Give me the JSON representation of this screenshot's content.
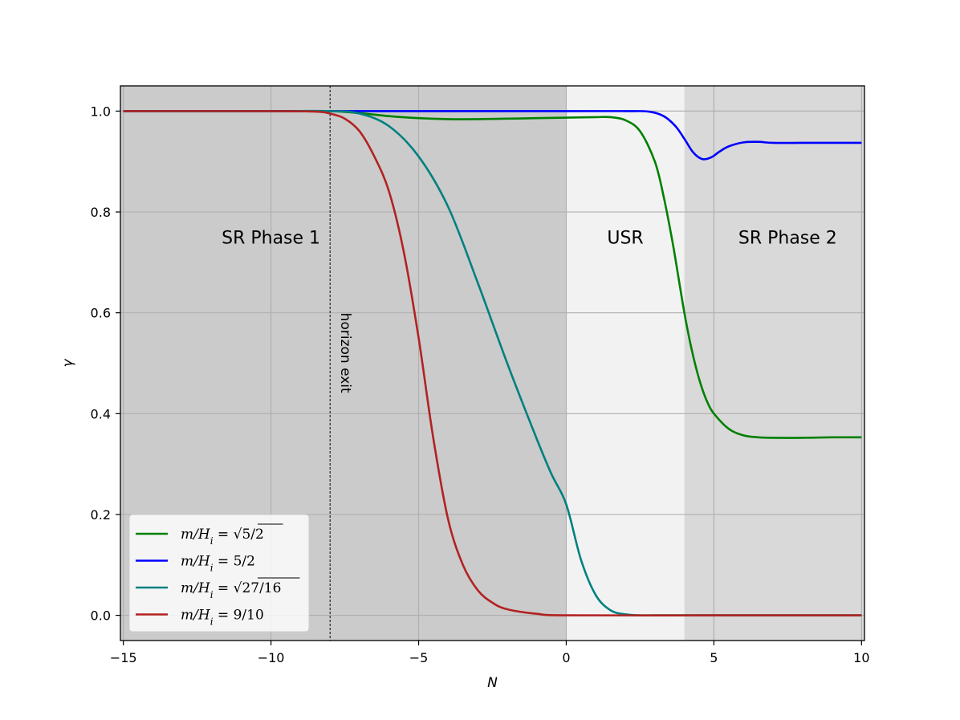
{
  "chart_data": {
    "type": "line",
    "title": "",
    "xlabel": "N",
    "ylabel": "γ",
    "xlim": [
      -15.1,
      10.1
    ],
    "ylim": [
      -0.05,
      1.05
    ],
    "xticks": [
      -15,
      -10,
      -5,
      0,
      5,
      10
    ],
    "xtick_labels": [
      "−15",
      "−10",
      "−5",
      "0",
      "5",
      "10"
    ],
    "yticks": [
      0.0,
      0.2,
      0.4,
      0.6,
      0.8,
      1.0
    ],
    "ytick_labels": [
      "0.0",
      "0.2",
      "0.4",
      "0.6",
      "0.8",
      "1.0"
    ],
    "grid": true,
    "legend_position": "lower-left",
    "regions": [
      {
        "label": "SR Phase 1",
        "x_start": -15.1,
        "x_end": 0,
        "color": "#cbcbcb",
        "label_x": -10,
        "label_y": 0.75
      },
      {
        "label": "USR",
        "x_start": 0,
        "x_end": 4,
        "color": "#f2f2f2",
        "label_x": 2,
        "label_y": 0.75
      },
      {
        "label": "SR Phase 2",
        "x_start": 4,
        "x_end": 10.1,
        "color": "#d9d9d9",
        "label_x": 7.5,
        "label_y": 0.75
      }
    ],
    "vline": {
      "x": -8,
      "label": "horizon exit",
      "label_y": 0.6
    },
    "series": [
      {
        "name": "m/H_i = √(5/2)",
        "color": "#008000",
        "x": [
          -15,
          -10,
          -8,
          -7,
          -6,
          -5,
          -4,
          -3,
          -2,
          -1,
          0,
          1,
          1.5,
          2,
          2.5,
          3,
          3.3,
          3.6,
          3.8,
          4,
          4.2,
          4.4,
          4.6,
          4.8,
          5,
          5.5,
          6,
          6.5,
          7,
          8,
          9,
          10
        ],
        "values": [
          1.0,
          1.0,
          1.0,
          0.996,
          0.99,
          0.986,
          0.984,
          0.984,
          0.985,
          0.986,
          0.987,
          0.988,
          0.988,
          0.982,
          0.96,
          0.9,
          0.83,
          0.74,
          0.67,
          0.6,
          0.54,
          0.49,
          0.45,
          0.42,
          0.4,
          0.37,
          0.357,
          0.353,
          0.352,
          0.352,
          0.353,
          0.353
        ]
      },
      {
        "name": "m/H_i = 5/2",
        "color": "#0000ff",
        "x": [
          -15,
          -10,
          -5,
          0,
          2,
          2.8,
          3.3,
          3.7,
          4,
          4.3,
          4.6,
          4.9,
          5.2,
          5.5,
          6,
          6.5,
          7,
          8,
          9,
          10
        ],
        "values": [
          1.0,
          1.0,
          1.0,
          1.0,
          1.0,
          0.999,
          0.99,
          0.97,
          0.945,
          0.918,
          0.905,
          0.908,
          0.92,
          0.93,
          0.938,
          0.939,
          0.937,
          0.937,
          0.937,
          0.937
        ]
      },
      {
        "name": "m/H_i = √(27/16)",
        "color": "#008080",
        "x": [
          -15,
          -10,
          -8,
          -7,
          -6,
          -5,
          -4,
          -3,
          -2,
          -1,
          -0.5,
          0,
          0.5,
          1,
          1.5,
          2,
          2.5,
          3,
          5,
          10
        ],
        "values": [
          1.0,
          1.0,
          1.0,
          0.995,
          0.97,
          0.91,
          0.81,
          0.66,
          0.5,
          0.35,
          0.28,
          0.22,
          0.11,
          0.04,
          0.01,
          0.002,
          0.0,
          0.0,
          0.0,
          0.0
        ]
      },
      {
        "name": "m/H_i = 9/10",
        "color": "#b22222",
        "x": [
          -15,
          -10,
          -8.5,
          -8,
          -7.5,
          -7,
          -6.5,
          -6,
          -5.5,
          -5,
          -4.5,
          -4,
          -3.5,
          -3,
          -2.5,
          -2,
          -1,
          0,
          5,
          10
        ],
        "values": [
          1.0,
          1.0,
          0.999,
          0.995,
          0.985,
          0.96,
          0.91,
          0.84,
          0.72,
          0.55,
          0.35,
          0.19,
          0.1,
          0.05,
          0.025,
          0.012,
          0.003,
          0.0,
          0.0,
          0.0
        ]
      }
    ]
  },
  "legend": {
    "items": [
      {
        "prefix": "m/H",
        "sub": "i",
        "eq": " = ",
        "value": "5/2",
        "sqrt": true
      },
      {
        "prefix": "m/H",
        "sub": "i",
        "eq": " = ",
        "value": "5/2",
        "sqrt": false
      },
      {
        "prefix": "m/H",
        "sub": "i",
        "eq": " = ",
        "value": "27/16",
        "sqrt": true
      },
      {
        "prefix": "m/H",
        "sub": "i",
        "eq": " = ",
        "value": "9/10",
        "sqrt": false
      }
    ]
  }
}
